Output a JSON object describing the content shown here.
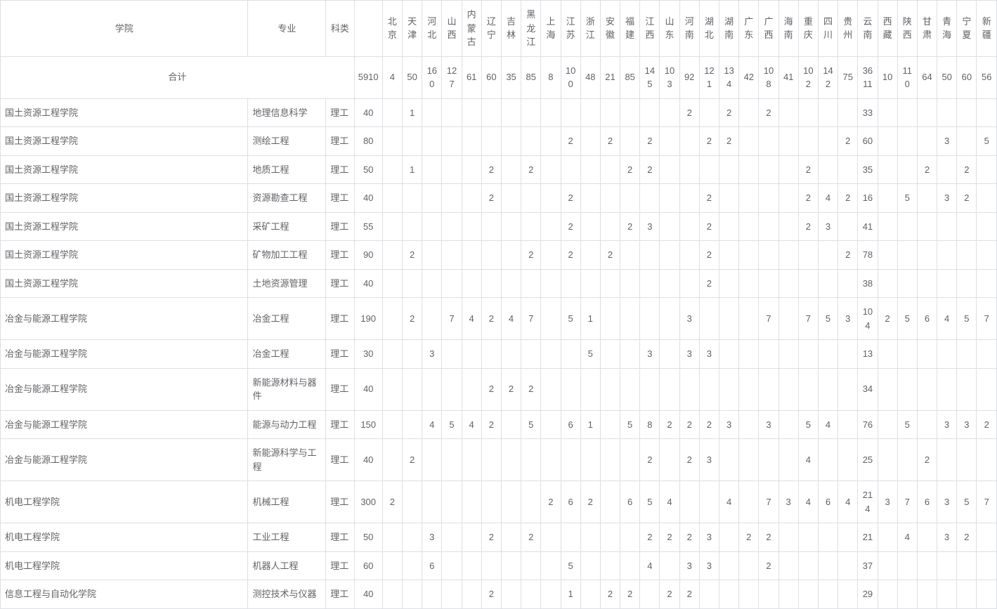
{
  "headers": {
    "college": "学院",
    "major": "专业",
    "kelei": "科类",
    "provinces": [
      "北京",
      "天津",
      "河北",
      "山西",
      "内蒙古",
      "辽宁",
      "吉林",
      "黑龙江",
      "上海",
      "江苏",
      "浙江",
      "安徽",
      "福建",
      "江西",
      "山东",
      "河南",
      "湖北",
      "湖南",
      "广东",
      "广西",
      "海南",
      "重庆",
      "四川",
      "贵州",
      "云南",
      "西藏",
      "陕西",
      "甘肃",
      "青海",
      "宁夏",
      "新疆"
    ]
  },
  "totalRow": {
    "label": "合计",
    "total": "5910",
    "values": [
      "4",
      "50",
      "160",
      "127",
      "61",
      "60",
      "35",
      "85",
      "8",
      "100",
      "48",
      "21",
      "85",
      "145",
      "103",
      "92",
      "121",
      "134",
      "42",
      "108",
      "41",
      "102",
      "142",
      "75",
      "3611",
      "10",
      "110",
      "64",
      "50",
      "60",
      "56"
    ]
  },
  "rows": [
    {
      "college": "国土资源工程学院",
      "major": "地理信息科学",
      "kelei": "理工",
      "total": "40",
      "v": [
        "",
        "1",
        "",
        "",
        "",
        "",
        "",
        "",
        "",
        "",
        "",
        "",
        "",
        "",
        "",
        "2",
        "",
        "2",
        "",
        "2",
        "",
        "",
        "",
        "",
        "33",
        "",
        "",
        "",
        "",
        "",
        ""
      ]
    },
    {
      "college": "国土资源工程学院",
      "major": "测绘工程",
      "kelei": "理工",
      "total": "80",
      "v": [
        "",
        "",
        "",
        "",
        "",
        "",
        "",
        "",
        "",
        "2",
        "",
        "2",
        "",
        "2",
        "",
        "",
        "2",
        "2",
        "",
        "",
        "",
        "",
        "",
        "2",
        "60",
        "",
        "",
        "",
        "3",
        "",
        "5"
      ]
    },
    {
      "college": "国土资源工程学院",
      "major": "地质工程",
      "kelei": "理工",
      "total": "50",
      "v": [
        "",
        "1",
        "",
        "",
        "",
        "2",
        "",
        "2",
        "",
        "",
        "",
        "",
        "2",
        "2",
        "",
        "",
        "",
        "",
        "",
        "",
        "",
        "2",
        "",
        "",
        "35",
        "",
        "",
        "2",
        "",
        "2",
        ""
      ]
    },
    {
      "college": "国土资源工程学院",
      "major": "资源勘查工程",
      "kelei": "理工",
      "total": "40",
      "v": [
        "",
        "",
        "",
        "",
        "",
        "2",
        "",
        "",
        "",
        "2",
        "",
        "",
        "",
        "",
        "",
        "",
        "2",
        "",
        "",
        "",
        "",
        "2",
        "4",
        "2",
        "16",
        "",
        "5",
        "",
        "3",
        "2",
        ""
      ]
    },
    {
      "college": "国土资源工程学院",
      "major": "采矿工程",
      "kelei": "理工",
      "total": "55",
      "v": [
        "",
        "",
        "",
        "",
        "",
        "",
        "",
        "",
        "",
        "2",
        "",
        "",
        "2",
        "3",
        "",
        "",
        "2",
        "",
        "",
        "",
        "",
        "2",
        "3",
        "",
        "41",
        "",
        "",
        "",
        "",
        "",
        ""
      ]
    },
    {
      "college": "国土资源工程学院",
      "major": "矿物加工工程",
      "kelei": "理工",
      "total": "90",
      "v": [
        "",
        "2",
        "",
        "",
        "",
        "",
        "",
        "2",
        "",
        "2",
        "",
        "2",
        "",
        "",
        "",
        "",
        "2",
        "",
        "",
        "",
        "",
        "",
        "",
        "2",
        "78",
        "",
        "",
        "",
        "",
        "",
        ""
      ]
    },
    {
      "college": "国土资源工程学院",
      "major": "土地资源管理",
      "kelei": "理工",
      "total": "40",
      "v": [
        "",
        "",
        "",
        "",
        "",
        "",
        "",
        "",
        "",
        "",
        "",
        "",
        "",
        "",
        "",
        "",
        "2",
        "",
        "",
        "",
        "",
        "",
        "",
        "",
        "38",
        "",
        "",
        "",
        "",
        "",
        ""
      ]
    },
    {
      "college": "冶金与能源工程学院",
      "major": "冶金工程",
      "kelei": "理工",
      "total": "190",
      "v": [
        "",
        "2",
        "",
        "7",
        "4",
        "2",
        "4",
        "7",
        "",
        "5",
        "1",
        "",
        "",
        "",
        "",
        "3",
        "",
        "",
        "",
        "7",
        "",
        "7",
        "5",
        "3",
        "104",
        "2",
        "5",
        "6",
        "4",
        "5",
        "7"
      ]
    },
    {
      "college": "冶金与能源工程学院",
      "major": "冶金工程",
      "kelei": "理工",
      "total": "30",
      "v": [
        "",
        "",
        "3",
        "",
        "",
        "",
        "",
        "",
        "",
        "",
        "5",
        "",
        "",
        "3",
        "",
        "3",
        "3",
        "",
        "",
        "",
        "",
        "",
        "",
        "",
        "13",
        "",
        "",
        "",
        "",
        "",
        ""
      ]
    },
    {
      "college": "冶金与能源工程学院",
      "major": "新能源材料与器件",
      "kelei": "理工",
      "total": "40",
      "v": [
        "",
        "",
        "",
        "",
        "",
        "2",
        "2",
        "2",
        "",
        "",
        "",
        "",
        "",
        "",
        "",
        "",
        "",
        "",
        "",
        "",
        "",
        "",
        "",
        "",
        "34",
        "",
        "",
        "",
        "",
        "",
        ""
      ]
    },
    {
      "college": "冶金与能源工程学院",
      "major": "能源与动力工程",
      "kelei": "理工",
      "total": "150",
      "v": [
        "",
        "",
        "4",
        "5",
        "4",
        "2",
        "",
        "5",
        "",
        "6",
        "1",
        "",
        "5",
        "8",
        "2",
        "2",
        "2",
        "3",
        "",
        "3",
        "",
        "5",
        "4",
        "",
        "76",
        "",
        "5",
        "",
        "3",
        "3",
        "2"
      ]
    },
    {
      "college": "冶金与能源工程学院",
      "major": "新能源科学与工程",
      "kelei": "理工",
      "total": "40",
      "v": [
        "",
        "2",
        "",
        "",
        "",
        "",
        "",
        "",
        "",
        "",
        "",
        "",
        "",
        "2",
        "",
        "2",
        "3",
        "",
        "",
        "",
        "",
        "4",
        "",
        "",
        "25",
        "",
        "",
        "2",
        "",
        "",
        ""
      ]
    },
    {
      "college": "机电工程学院",
      "major": "机械工程",
      "kelei": "理工",
      "total": "300",
      "v": [
        "2",
        "",
        "",
        "",
        "",
        "",
        "",
        "",
        "2",
        "6",
        "2",
        "",
        "6",
        "5",
        "4",
        "",
        "",
        "4",
        "",
        "7",
        "3",
        "4",
        "6",
        "4",
        "214",
        "3",
        "7",
        "6",
        "3",
        "5",
        "7"
      ]
    },
    {
      "college": "机电工程学院",
      "major": "工业工程",
      "kelei": "理工",
      "total": "50",
      "v": [
        "",
        "",
        "3",
        "",
        "",
        "2",
        "",
        "2",
        "",
        "",
        "",
        "",
        "",
        "2",
        "2",
        "2",
        "3",
        "",
        "2",
        "2",
        "",
        "",
        "",
        "",
        "21",
        "",
        "4",
        "",
        "3",
        "2",
        ""
      ]
    },
    {
      "college": "机电工程学院",
      "major": "机器人工程",
      "kelei": "理工",
      "total": "60",
      "v": [
        "",
        "",
        "6",
        "",
        "",
        "",
        "",
        "",
        "",
        "5",
        "",
        "",
        "",
        "4",
        "",
        "3",
        "3",
        "",
        "",
        "2",
        "",
        "",
        "",
        "",
        "37",
        "",
        "",
        "",
        "",
        "",
        ""
      ]
    },
    {
      "college": "信息工程与自动化学院",
      "major": "测控技术与仪器",
      "kelei": "理工",
      "total": "40",
      "v": [
        "",
        "",
        "",
        "",
        "",
        "2",
        "",
        "",
        "",
        "1",
        "",
        "2",
        "2",
        "",
        "2",
        "2",
        "",
        "",
        "",
        "",
        "",
        "",
        "",
        "",
        "29",
        "",
        "",
        "",
        "",
        "",
        ""
      ]
    }
  ]
}
